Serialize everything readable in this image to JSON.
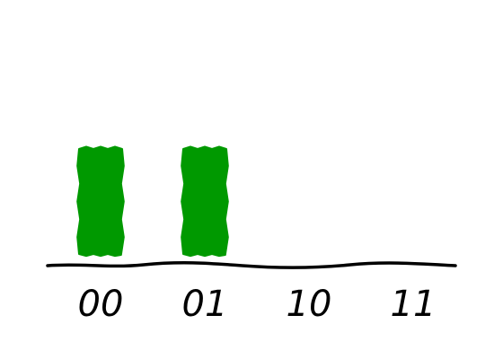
{
  "chart_data": {
    "type": "bar",
    "categories": [
      "00",
      "01",
      "10",
      "11"
    ],
    "values": [
      0.5,
      0.5,
      0,
      0
    ],
    "ylim": [
      0,
      1
    ],
    "title": "",
    "xlabel": "",
    "ylabel": "",
    "grid": false,
    "bar_color": "#009900",
    "axis_color": "#000000",
    "style": "hand-drawn"
  }
}
